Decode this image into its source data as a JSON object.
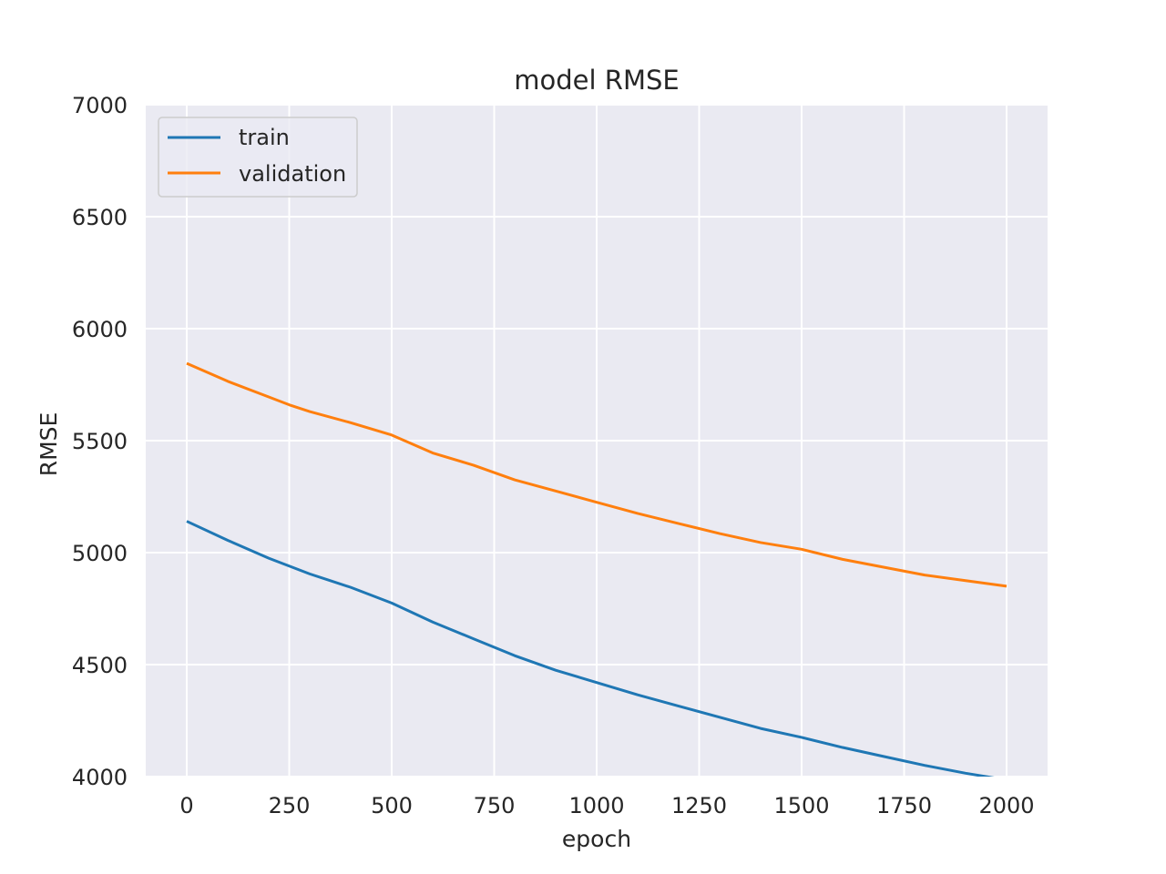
{
  "chart_data": {
    "type": "line",
    "title": "model RMSE",
    "xlabel": "epoch",
    "ylabel": "RMSE",
    "xlim": [
      -100,
      2100
    ],
    "ylim": [
      4000,
      7000
    ],
    "xticks": [
      0,
      250,
      500,
      750,
      1000,
      1250,
      1500,
      1750,
      2000
    ],
    "yticks": [
      4000,
      4500,
      5000,
      5500,
      6000,
      6500,
      7000
    ],
    "grid": true,
    "legend_position": "top-left",
    "series": [
      {
        "name": "train",
        "color": "#1f77b4",
        "x": [
          0,
          100,
          200,
          250,
          300,
          400,
          500,
          600,
          700,
          800,
          900,
          1000,
          1100,
          1200,
          1300,
          1400,
          1500,
          1600,
          1700,
          1800,
          1900,
          2000
        ],
        "y": [
          5140,
          5055,
          4975,
          4940,
          4905,
          4845,
          4775,
          4690,
          4615,
          4540,
          4475,
          4420,
          4365,
          4315,
          4265,
          4215,
          4175,
          4130,
          4090,
          4050,
          4015,
          3985
        ]
      },
      {
        "name": "validation",
        "color": "#ff7f0e",
        "x": [
          0,
          100,
          200,
          250,
          300,
          400,
          500,
          600,
          700,
          800,
          900,
          1000,
          1100,
          1200,
          1300,
          1400,
          1500,
          1600,
          1700,
          1800,
          1900,
          2000
        ],
        "y": [
          5845,
          5765,
          5695,
          5660,
          5630,
          5580,
          5525,
          5445,
          5390,
          5325,
          5275,
          5225,
          5175,
          5130,
          5085,
          5045,
          5015,
          4970,
          4935,
          4900,
          4875,
          4850
        ]
      }
    ]
  }
}
